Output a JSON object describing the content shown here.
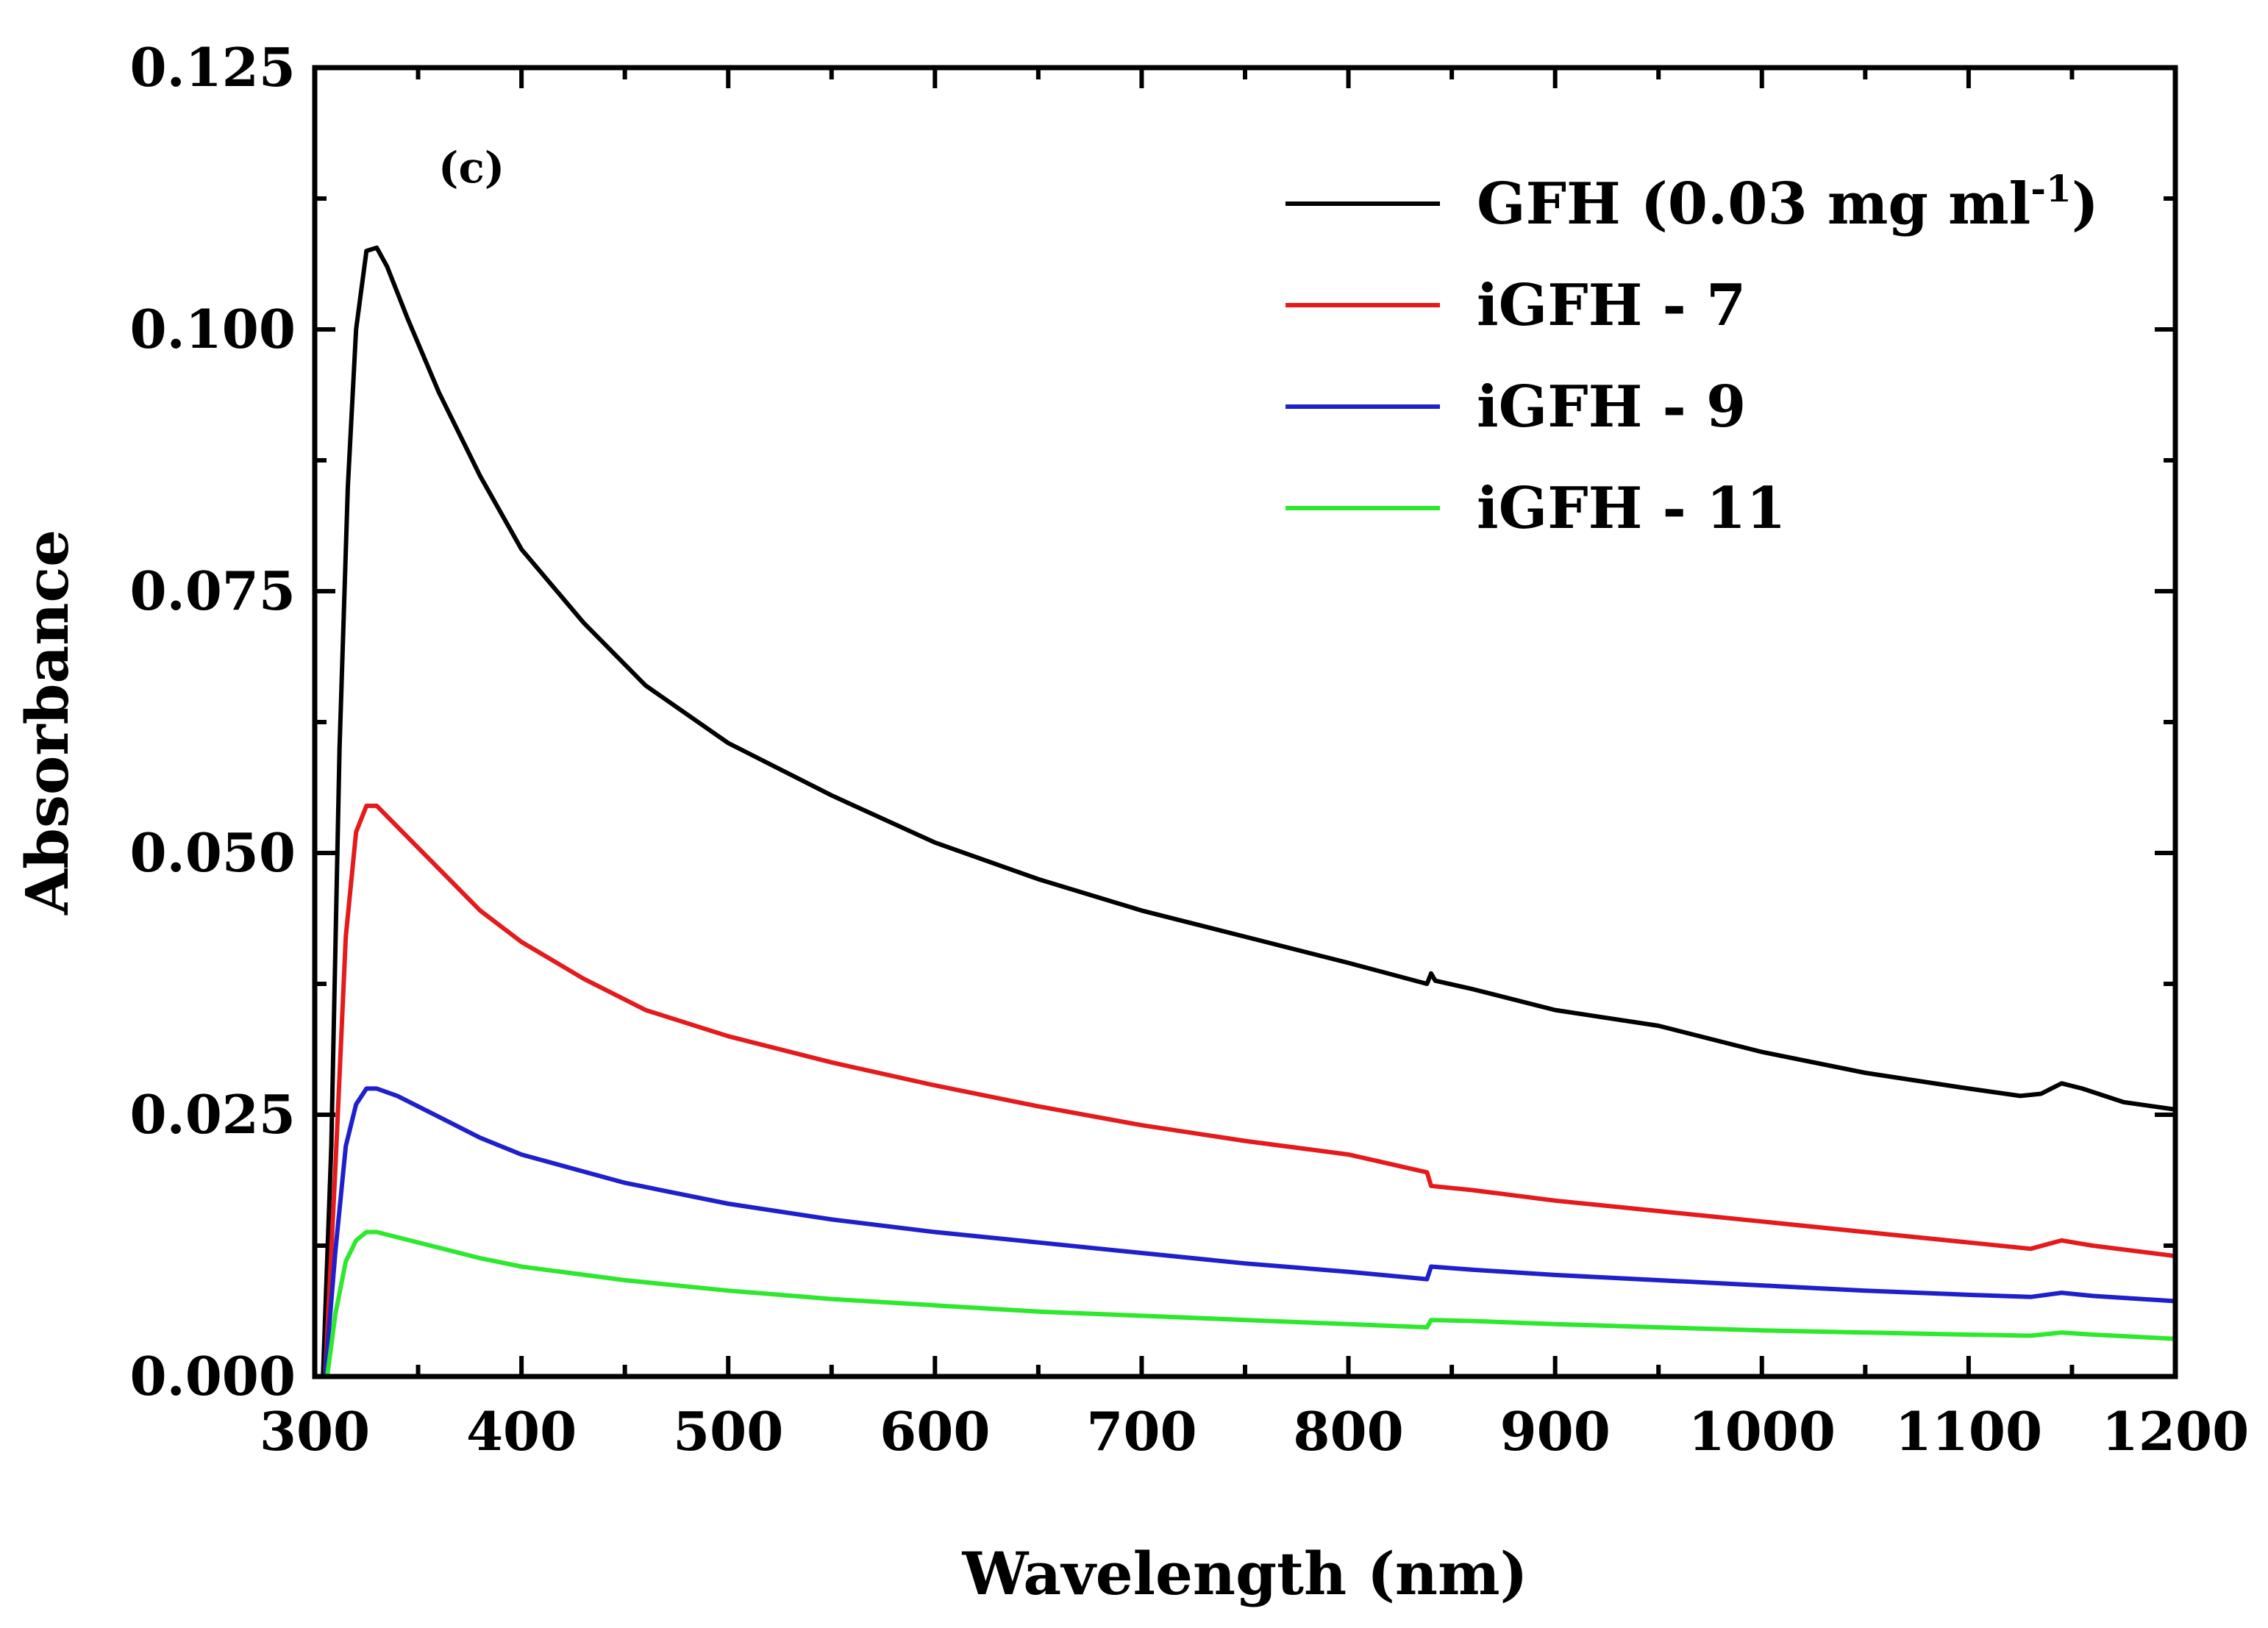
{
  "chart_data": {
    "type": "line",
    "title": "",
    "panel_label": "(c)",
    "xlabel": "Wavelength (nm)",
    "ylabel": "Absorbance",
    "xlim": [
      300,
      1200
    ],
    "ylim": [
      0.0,
      0.125
    ],
    "xticks": [
      300,
      400,
      500,
      600,
      700,
      800,
      900,
      1000,
      1100,
      1200
    ],
    "xtick_labels": [
      "300",
      "400",
      "500",
      "600",
      "700",
      "800",
      "900",
      "1000",
      "1100",
      "1200"
    ],
    "yticks": [
      0.0,
      0.025,
      0.05,
      0.075,
      0.1,
      0.125
    ],
    "ytick_labels": [
      "0.000",
      "0.025",
      "0.050",
      "0.075",
      "0.100",
      "0.125"
    ],
    "legend_position": "top-right",
    "grid": false,
    "series": [
      {
        "name": "GFH (0.03 mg ml-1)",
        "legend_main": "GFH (0.03 mg ml",
        "legend_sup": "-1",
        "legend_tail": ")",
        "color": "#000000",
        "x": [
          304,
          308,
          312,
          316,
          320,
          325,
          330,
          335,
          345,
          360,
          380,
          400,
          430,
          460,
          500,
          550,
          600,
          650,
          700,
          750,
          800,
          838,
          840,
          842,
          860,
          900,
          950,
          960,
          1000,
          1050,
          1100,
          1125,
          1135,
          1145,
          1155,
          1175,
          1200
        ],
        "y": [
          0.0,
          0.022,
          0.06,
          0.085,
          0.1,
          0.1075,
          0.1078,
          0.106,
          0.101,
          0.094,
          0.086,
          0.079,
          0.072,
          0.066,
          0.0605,
          0.0555,
          0.051,
          0.0475,
          0.0445,
          0.042,
          0.0395,
          0.0375,
          0.0385,
          0.0378,
          0.037,
          0.035,
          0.0335,
          0.033,
          0.031,
          0.029,
          0.0275,
          0.0268,
          0.027,
          0.028,
          0.0275,
          0.0262,
          0.0255
        ]
      },
      {
        "name": "iGFH - 7",
        "color": "#e41a1c",
        "x": [
          305,
          310,
          315,
          320,
          325,
          330,
          340,
          360,
          380,
          400,
          430,
          460,
          500,
          550,
          600,
          650,
          700,
          750,
          800,
          838,
          840,
          860,
          900,
          950,
          1000,
          1050,
          1100,
          1130,
          1145,
          1160,
          1200
        ],
        "y": [
          0.0,
          0.02,
          0.042,
          0.052,
          0.0545,
          0.0545,
          0.0525,
          0.0485,
          0.0445,
          0.0415,
          0.038,
          0.035,
          0.0325,
          0.03,
          0.0278,
          0.0258,
          0.024,
          0.0225,
          0.0212,
          0.0195,
          0.0182,
          0.0178,
          0.0168,
          0.0158,
          0.0148,
          0.0138,
          0.0128,
          0.0122,
          0.013,
          0.0125,
          0.0115
        ]
      },
      {
        "name": "iGFH - 9",
        "color": "#1f1fcc",
        "x": [
          305,
          310,
          315,
          320,
          325,
          330,
          340,
          360,
          380,
          400,
          450,
          500,
          550,
          600,
          650,
          700,
          750,
          800,
          838,
          840,
          860,
          900,
          950,
          1000,
          1050,
          1100,
          1130,
          1145,
          1160,
          1200
        ],
        "y": [
          0.0,
          0.012,
          0.022,
          0.026,
          0.0275,
          0.0275,
          0.0268,
          0.0248,
          0.0228,
          0.0212,
          0.0185,
          0.0165,
          0.015,
          0.0138,
          0.0128,
          0.0118,
          0.0108,
          0.01,
          0.0093,
          0.0105,
          0.0102,
          0.0097,
          0.0092,
          0.0087,
          0.0082,
          0.0078,
          0.0076,
          0.008,
          0.0077,
          0.0072
        ]
      },
      {
        "name": "iGFH - 11",
        "color": "#2ee82e",
        "x": [
          306,
          310,
          315,
          320,
          325,
          330,
          340,
          360,
          380,
          400,
          450,
          500,
          550,
          600,
          650,
          700,
          750,
          800,
          838,
          840,
          860,
          900,
          950,
          1000,
          1050,
          1100,
          1130,
          1145,
          1160,
          1200
        ],
        "y": [
          0.0,
          0.006,
          0.011,
          0.013,
          0.0138,
          0.0138,
          0.0133,
          0.0123,
          0.0113,
          0.0105,
          0.0092,
          0.0082,
          0.0074,
          0.0068,
          0.0062,
          0.0058,
          0.0054,
          0.005,
          0.0047,
          0.0054,
          0.0053,
          0.005,
          0.0047,
          0.0044,
          0.0042,
          0.004,
          0.0039,
          0.0042,
          0.004,
          0.0036
        ]
      }
    ]
  }
}
